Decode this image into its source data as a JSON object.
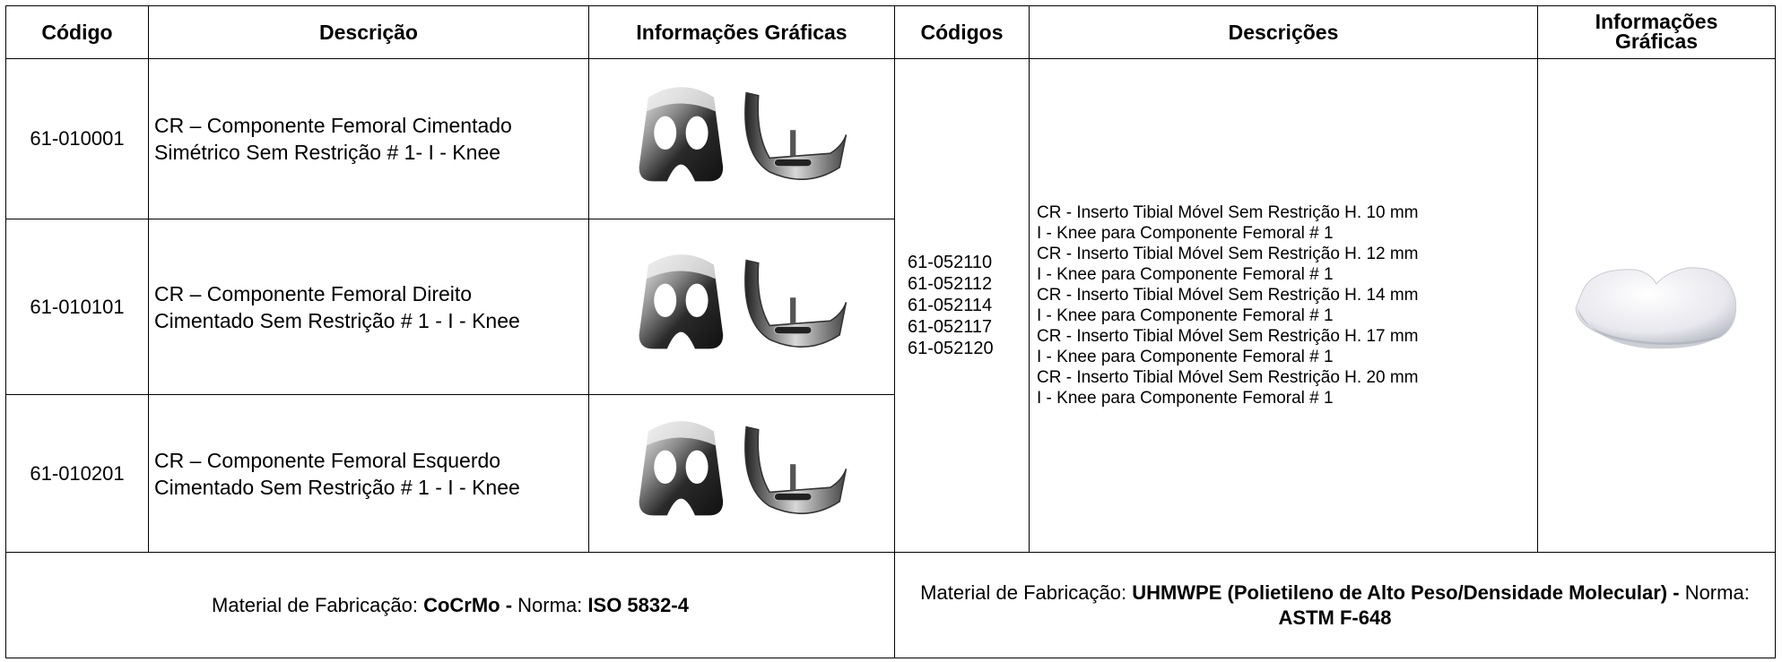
{
  "header": [
    "Código",
    "Descrição",
    "Informações Gráficas",
    "Códigos",
    "Descrições",
    "Informações Gráficas"
  ],
  "left_rows": [
    {
      "code": "61-010001",
      "description": [
        "CR – Componente Femoral Cimentado",
        "Simétrico Sem Restrição # 1- I - Knee"
      ]
    },
    {
      "code": "61-010101",
      "description": [
        "CR – Componente Femoral Direito",
        "Cimentado Sem Restrição # 1 - I - Knee"
      ]
    },
    {
      "code": "61-010201",
      "description": [
        "CR – Componente Femoral Esquerdo",
        "Cimentado Sem Restrição # 1 - I - Knee"
      ]
    }
  ],
  "right": {
    "codes": [
      "61-052110",
      "61-052112",
      "61-052114",
      "61-052117",
      "61-052120"
    ],
    "descriptions": [
      [
        "CR - Inserto Tibial Móvel Sem Restrição H. 10 mm",
        "I - Knee para Componente Femoral # 1"
      ],
      [
        "CR - Inserto Tibial Móvel Sem Restrição H. 12 mm",
        "I - Knee para Componente Femoral # 1"
      ],
      [
        "CR - Inserto Tibial Móvel Sem Restrição H. 14 mm",
        "I - Knee para Componente Femoral # 1"
      ],
      [
        "CR - Inserto Tibial Móvel Sem Restrição H. 17 mm",
        "I - Knee para Componente Femoral # 1"
      ],
      [
        "CR - Inserto Tibial Móvel Sem Restrição H. 20 mm",
        "I - Knee para Componente Femoral # 1"
      ]
    ]
  },
  "footer": {
    "left": {
      "label": "Material de Fabricação:",
      "material": "CoCrMo -",
      "norm_label": "Norma:",
      "norm": "ISO 5832-4"
    },
    "right": {
      "label": "Material de Fabricação:",
      "material": "UHMWPE (Polietileno de Alto Peso/Densidade Molecular) -",
      "norm_label": "Norma:",
      "norm": "ASTM F-648"
    }
  }
}
